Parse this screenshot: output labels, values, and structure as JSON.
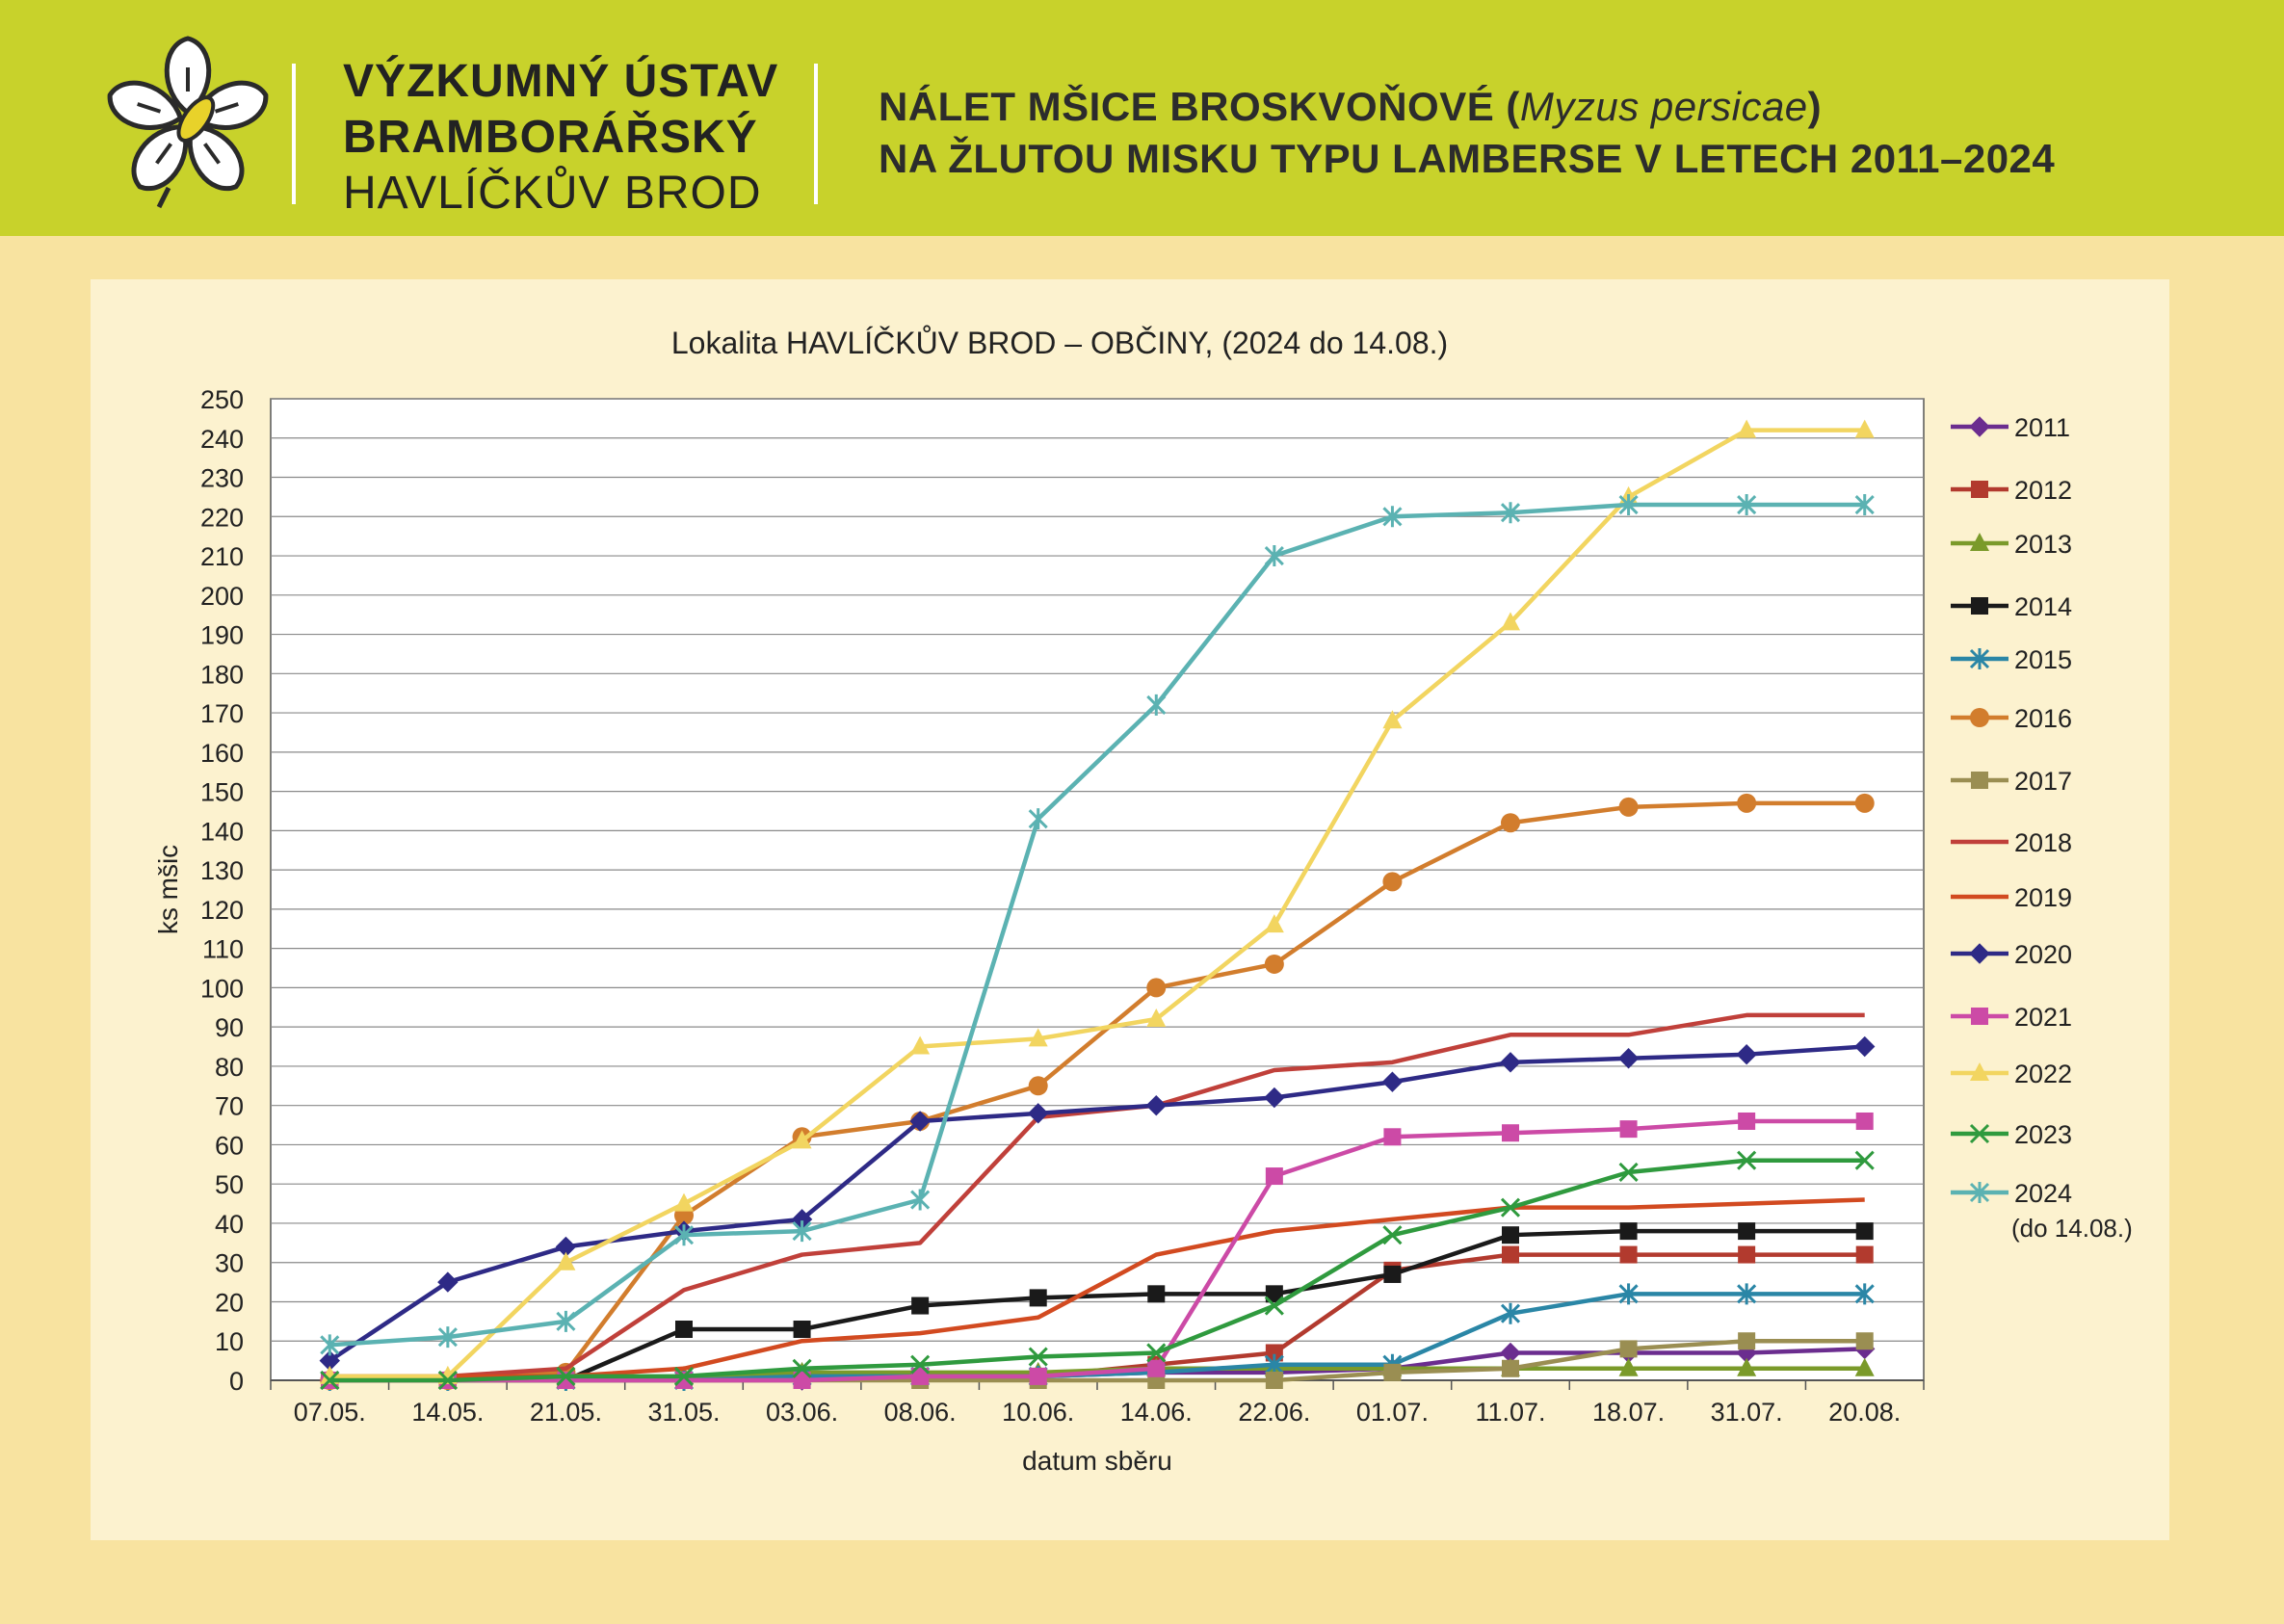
{
  "header": {
    "institute_line1": "VÝZKUMNÝ ÚSTAV",
    "institute_line2": "BRAMBORÁŘSKÝ",
    "institute_line3": "HAVLÍČKŮV BROD",
    "title_line1_pre": "NÁLET MŠICE BROSKVOŇOVÉ (",
    "title_line1_species": "Myzus persicae",
    "title_line1_post": ")",
    "title_line2": "NA ŽLUTOU MISKU TYPU LAMBERSE V LETECH 2011–2024"
  },
  "chart_data": {
    "type": "line",
    "title": "Lokalita HAVLÍČKŮV BROD – OBČINY, (2024 do 14.08.)",
    "xlabel": "datum sběru",
    "ylabel": "ks mšic",
    "ylim": [
      0,
      250
    ],
    "ytick_step": 10,
    "grid": true,
    "legend_position": "right",
    "categories": [
      "07.05.",
      "14.05.",
      "21.05.",
      "31.05.",
      "03.06.",
      "08.06.",
      "10.06.",
      "14.06.",
      "22.06.",
      "01.07.",
      "11.07.",
      "18.07.",
      "31.07.",
      "20.08."
    ],
    "series": [
      {
        "name": "2011",
        "color": "#6b2d8f",
        "marker": "diamond",
        "values": [
          0,
          0,
          0,
          0,
          0,
          1,
          1,
          2,
          2,
          3,
          7,
          7,
          7,
          8
        ]
      },
      {
        "name": "2012",
        "color": "#b23a2e",
        "marker": "square",
        "values": [
          0,
          0,
          0,
          0,
          1,
          1,
          1,
          4,
          7,
          28,
          32,
          32,
          32,
          32
        ]
      },
      {
        "name": "2013",
        "color": "#7a9a2a",
        "marker": "triangle",
        "values": [
          0,
          0,
          0,
          1,
          2,
          2,
          2,
          3,
          3,
          3,
          3,
          3,
          3,
          3
        ]
      },
      {
        "name": "2014",
        "color": "#1a1a1a",
        "marker": "square",
        "values": [
          0,
          0,
          0,
          13,
          13,
          19,
          21,
          22,
          22,
          27,
          37,
          38,
          38,
          38
        ]
      },
      {
        "name": "2015",
        "color": "#2a86a6",
        "marker": "asterisk",
        "values": [
          0,
          0,
          0,
          0,
          1,
          1,
          1,
          2,
          4,
          4,
          17,
          22,
          22,
          22
        ]
      },
      {
        "name": "2016",
        "color": "#d27d2d",
        "marker": "circle",
        "values": [
          0,
          0,
          2,
          42,
          62,
          66,
          75,
          100,
          106,
          127,
          142,
          146,
          147,
          147
        ]
      },
      {
        "name": "2017",
        "color": "#9a8e52",
        "marker": "square",
        "values": [
          0,
          0,
          0,
          0,
          0,
          0,
          0,
          0,
          0,
          2,
          3,
          8,
          10,
          10
        ]
      },
      {
        "name": "2018",
        "color": "#c0403a",
        "marker": "none",
        "values": [
          1,
          1,
          3,
          23,
          32,
          35,
          67,
          70,
          79,
          81,
          88,
          88,
          93,
          93
        ]
      },
      {
        "name": "2019",
        "color": "#d24a20",
        "marker": "none",
        "values": [
          1,
          1,
          1,
          3,
          10,
          12,
          16,
          32,
          38,
          41,
          44,
          44,
          45,
          46
        ]
      },
      {
        "name": "2020",
        "color": "#2e2a86",
        "marker": "diamond",
        "values": [
          5,
          25,
          34,
          38,
          41,
          66,
          68,
          70,
          72,
          76,
          81,
          82,
          83,
          85
        ]
      },
      {
        "name": "2021",
        "color": "#cc4aa6",
        "marker": "square",
        "values": [
          0,
          0,
          0,
          0,
          0,
          1,
          1,
          3,
          52,
          62,
          63,
          64,
          66,
          66
        ]
      },
      {
        "name": "2022",
        "color": "#f2d560",
        "marker": "triangle",
        "values": [
          1,
          1,
          30,
          45,
          61,
          85,
          87,
          92,
          116,
          168,
          193,
          225,
          242,
          242
        ]
      },
      {
        "name": "2023",
        "color": "#2f9a3e",
        "marker": "x",
        "values": [
          0,
          0,
          1,
          1,
          3,
          4,
          6,
          7,
          19,
          37,
          44,
          53,
          56,
          56
        ]
      },
      {
        "name": "2024",
        "color": "#5bb2b2",
        "marker": "asterisk",
        "values": [
          9,
          11,
          15,
          37,
          38,
          46,
          143,
          172,
          210,
          220,
          221,
          223,
          223,
          223
        ]
      }
    ],
    "legend_note_2024": "(do 14.08.)"
  }
}
